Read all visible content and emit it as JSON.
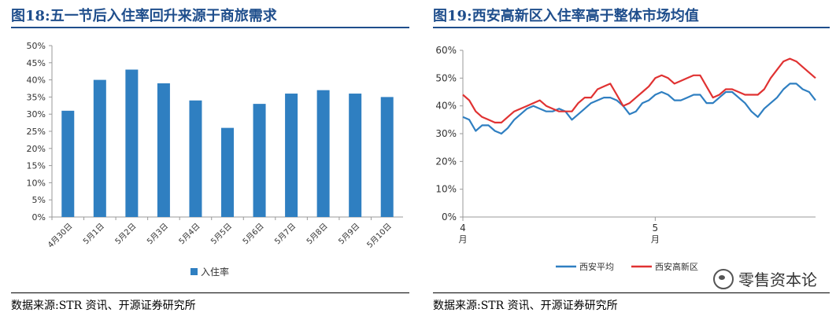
{
  "left": {
    "title": "图18:五一节后入住率回升来源于商旅需求",
    "source": "数据来源:STR 资讯、开源证券研究所",
    "chart_data": {
      "type": "bar",
      "categories": [
        "4月30日",
        "5月1日",
        "5月2日",
        "5月3日",
        "5月4日",
        "5月5日",
        "5月6日",
        "5月7日",
        "5月8日",
        "5月9日",
        "5月10日"
      ],
      "series": [
        {
          "name": "入住率",
          "values": [
            31,
            40,
            43,
            39,
            34,
            26,
            33,
            36,
            37,
            36,
            35
          ]
        }
      ],
      "yticks": [
        "0%",
        "5%",
        "10%",
        "15%",
        "20%",
        "25%",
        "30%",
        "35%",
        "40%",
        "45%",
        "50%"
      ],
      "ylim": [
        0,
        50
      ],
      "legend": "bottom",
      "color": "#2f7fc1"
    }
  },
  "right": {
    "title": "图19:西安高新区入住率高于整体市场均值",
    "source": "数据来源:STR 资讯、开源证券研究所",
    "chart_data": {
      "type": "line",
      "ylim": [
        0,
        60
      ],
      "yticks": [
        "0%",
        "10%",
        "20%",
        "30%",
        "40%",
        "50%",
        "60%"
      ],
      "xticks": [
        {
          "label": "4",
          "sublabel": "月",
          "day": 1
        },
        {
          "label": "5",
          "sublabel": "月",
          "day": 31
        }
      ],
      "legend": "bottom",
      "series": [
        {
          "name": "西安平均",
          "color": "#2f7fc1",
          "values": [
            36,
            35,
            31,
            33,
            33,
            31,
            30,
            32,
            35,
            37,
            39,
            40,
            39,
            38,
            38,
            39,
            38,
            35,
            37,
            39,
            41,
            42,
            43,
            43,
            42,
            40,
            37,
            38,
            41,
            42,
            44,
            45,
            44,
            42,
            42,
            43,
            44,
            44,
            41,
            41,
            43,
            45,
            45,
            43,
            41,
            38,
            36,
            39,
            41,
            43,
            46,
            48,
            48,
            46,
            45,
            42
          ]
        },
        {
          "name": "西安高新区",
          "color": "#e03232",
          "values": [
            44,
            42,
            38,
            36,
            35,
            34,
            34,
            36,
            38,
            39,
            40,
            41,
            42,
            40,
            39,
            38,
            38,
            38,
            41,
            43,
            43,
            46,
            47,
            48,
            44,
            40,
            41,
            43,
            45,
            47,
            50,
            51,
            50,
            48,
            49,
            50,
            51,
            51,
            47,
            43,
            44,
            46,
            46,
            45,
            44,
            44,
            44,
            46,
            50,
            53,
            56,
            57,
            56,
            54,
            52,
            50
          ]
        }
      ]
    }
  },
  "watermark": {
    "text": "零售资本论",
    "icon": "wechat-icon"
  }
}
